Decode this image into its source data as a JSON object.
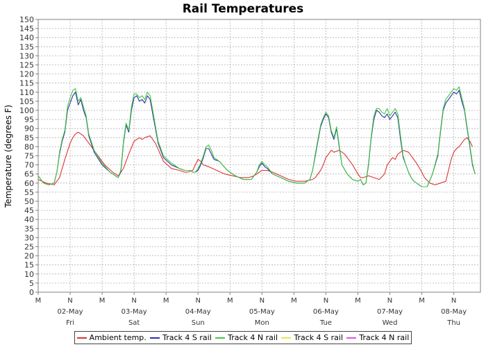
{
  "chart_data": {
    "type": "line",
    "title": "Rail Temperatures",
    "xlabel": "",
    "ylabel": "Temperature (degrees F)",
    "ylim": [
      0,
      150
    ],
    "yticks": [
      0,
      5,
      10,
      15,
      20,
      25,
      30,
      35,
      40,
      45,
      50,
      55,
      60,
      65,
      70,
      75,
      80,
      85,
      90,
      95,
      100,
      105,
      110,
      115,
      120,
      125,
      130,
      135,
      140,
      145,
      150
    ],
    "xlim": [
      0,
      166
    ],
    "x_unit": "hours from 01-May 00:00",
    "grid": true,
    "legend_position": "bottom",
    "time_ticks": [
      {
        "h": 0,
        "label": "M"
      },
      {
        "h": 12,
        "label": "N"
      },
      {
        "h": 24,
        "label": "M"
      },
      {
        "h": 36,
        "label": "N"
      },
      {
        "h": 48,
        "label": "M"
      },
      {
        "h": 60,
        "label": "N"
      },
      {
        "h": 72,
        "label": "M"
      },
      {
        "h": 84,
        "label": "N"
      },
      {
        "h": 96,
        "label": "M"
      },
      {
        "h": 108,
        "label": "N"
      },
      {
        "h": 120,
        "label": "M"
      },
      {
        "h": 132,
        "label": "N"
      },
      {
        "h": 144,
        "label": "M"
      },
      {
        "h": 156,
        "label": "N"
      }
    ],
    "day_labels": [
      {
        "h": 12,
        "date": "02-May",
        "day": "Fri"
      },
      {
        "h": 36,
        "date": "03-May",
        "day": "Sat"
      },
      {
        "h": 60,
        "date": "04-May",
        "day": "Sun"
      },
      {
        "h": 84,
        "date": "05-May",
        "day": "Mon"
      },
      {
        "h": 108,
        "date": "06-May",
        "day": "Tue"
      },
      {
        "h": 132,
        "date": "07-May",
        "day": "Wed"
      },
      {
        "h": 156,
        "date": "08-May",
        "day": "Thu"
      }
    ],
    "series": [
      {
        "name": "Ambient temp.",
        "color": "#dd3333",
        "x": [
          0,
          3,
          6,
          8,
          10,
          12,
          13,
          14,
          15,
          17,
          19,
          22,
          25,
          28,
          30,
          32,
          34,
          36,
          38,
          39,
          40,
          42,
          44,
          47,
          50,
          53,
          55,
          56,
          58,
          59,
          60,
          61,
          62,
          64,
          67,
          70,
          73,
          76,
          79,
          81,
          82,
          83,
          84,
          85,
          86,
          88,
          91,
          94,
          97,
          100,
          103,
          104,
          106,
          107,
          108,
          109,
          110,
          111,
          113,
          115,
          118,
          120,
          121,
          122,
          124,
          126,
          128,
          130,
          131,
          132,
          133,
          134,
          135,
          137,
          139,
          142,
          144,
          145,
          147,
          149,
          151,
          153,
          154,
          155,
          156,
          157,
          158,
          160,
          161,
          162,
          163
        ],
        "y": [
          62,
          60,
          59,
          63,
          73,
          82,
          85,
          87,
          88,
          86,
          82,
          76,
          70,
          66,
          64,
          68,
          76,
          83,
          85,
          84,
          85,
          86,
          82,
          72,
          68,
          67,
          66,
          66,
          67,
          70,
          73,
          72,
          70,
          69,
          67,
          65,
          64,
          63,
          63,
          64,
          65,
          66,
          67,
          67,
          67,
          66,
          64,
          62,
          61,
          61,
          62,
          63,
          67,
          70,
          74,
          76,
          78,
          77,
          78,
          76,
          70,
          65,
          63,
          63,
          64,
          63,
          62,
          65,
          70,
          72,
          74,
          73,
          76,
          78,
          77,
          71,
          66,
          63,
          60,
          59,
          60,
          61,
          67,
          73,
          77,
          79,
          80,
          84,
          85,
          83,
          80
        ]
      },
      {
        "name": "Track 4 S rail",
        "color": "#3030a8",
        "x": [
          0,
          2,
          4,
          6,
          7,
          8,
          9,
          10,
          11,
          12,
          13,
          14,
          15,
          16,
          17,
          18,
          19,
          21,
          24,
          27,
          30,
          31,
          32,
          33,
          34,
          35,
          36,
          37,
          38,
          39,
          40,
          41,
          42,
          43,
          45,
          47,
          50,
          53,
          55,
          57,
          58,
          59,
          60,
          61,
          62,
          63,
          64,
          65,
          66,
          68,
          71,
          74,
          77,
          79,
          80,
          81,
          82,
          83,
          84,
          85,
          86,
          88,
          91,
          94,
          97,
          100,
          102,
          103,
          104,
          105,
          106,
          107,
          108,
          109,
          110,
          111,
          112,
          113,
          114,
          116,
          118,
          120,
          121,
          122,
          123,
          124,
          125,
          126,
          127,
          128,
          129,
          130,
          131,
          132,
          133,
          134,
          135,
          136,
          137,
          138,
          139,
          140,
          141,
          142,
          144,
          146,
          148,
          150,
          151,
          152,
          153,
          154,
          155,
          156,
          157,
          158,
          159,
          160,
          161,
          162,
          163,
          164
        ],
        "y": [
          64,
          60,
          59,
          60,
          66,
          76,
          83,
          88,
          100,
          104,
          108,
          110,
          103,
          106,
          100,
          96,
          86,
          77,
          70,
          66,
          63,
          66,
          82,
          92,
          88,
          100,
          107,
          108,
          105,
          106,
          104,
          108,
          106,
          98,
          82,
          74,
          70,
          68,
          67,
          67,
          66,
          66,
          67,
          70,
          74,
          79,
          79,
          76,
          73,
          72,
          67,
          64,
          62,
          62,
          62,
          64,
          66,
          69,
          71,
          69,
          68,
          65,
          63,
          61,
          60,
          60,
          62,
          67,
          75,
          83,
          91,
          95,
          98,
          96,
          88,
          84,
          90,
          80,
          70,
          65,
          62,
          61,
          62,
          59,
          60,
          70,
          85,
          95,
          100,
          99,
          97,
          96,
          98,
          95,
          97,
          99,
          96,
          84,
          74,
          70,
          66,
          63,
          61,
          60,
          58,
          58,
          65,
          75,
          88,
          100,
          104,
          106,
          108,
          110,
          109,
          111,
          105,
          100,
          90,
          80,
          70,
          65
        ]
      },
      {
        "name": "Track 4 N rail",
        "color": "#40c840",
        "x": [
          0,
          2,
          4,
          6,
          7,
          8,
          9,
          10,
          11,
          12,
          13,
          14,
          15,
          16,
          17,
          18,
          19,
          21,
          24,
          27,
          30,
          31,
          32,
          33,
          34,
          35,
          36,
          37,
          38,
          39,
          40,
          41,
          42,
          43,
          45,
          47,
          50,
          53,
          55,
          57,
          58,
          59,
          60,
          61,
          62,
          63,
          64,
          65,
          66,
          68,
          71,
          74,
          77,
          79,
          80,
          81,
          82,
          83,
          84,
          85,
          86,
          88,
          91,
          94,
          97,
          100,
          102,
          103,
          104,
          105,
          106,
          107,
          108,
          109,
          110,
          111,
          112,
          113,
          114,
          116,
          118,
          120,
          121,
          122,
          123,
          124,
          125,
          126,
          127,
          128,
          129,
          130,
          131,
          132,
          133,
          134,
          135,
          136,
          137,
          138,
          139,
          140,
          141,
          142,
          144,
          146,
          148,
          150,
          151,
          152,
          153,
          154,
          155,
          156,
          157,
          158,
          159,
          160,
          161,
          162,
          163,
          164
        ],
        "y": [
          64,
          60,
          59,
          60,
          66,
          77,
          84,
          89,
          102,
          107,
          111,
          112,
          105,
          107,
          102,
          97,
          87,
          78,
          71,
          66,
          63,
          67,
          83,
          93,
          89,
          102,
          109,
          109,
          107,
          108,
          106,
          110,
          108,
          100,
          83,
          75,
          71,
          68,
          67,
          67,
          66,
          66,
          68,
          71,
          75,
          80,
          81,
          78,
          74,
          72,
          67,
          64,
          62,
          62,
          62,
          64,
          66,
          70,
          72,
          70,
          69,
          65,
          63,
          61,
          60,
          60,
          62,
          67,
          76,
          84,
          92,
          96,
          99,
          97,
          89,
          85,
          91,
          81,
          70,
          65,
          62,
          61,
          62,
          59,
          60,
          71,
          86,
          97,
          101,
          101,
          99,
          98,
          101,
          97,
          99,
          101,
          98,
          86,
          75,
          70,
          66,
          63,
          61,
          60,
          58,
          58,
          65,
          76,
          89,
          101,
          106,
          108,
          110,
          112,
          111,
          113,
          107,
          101,
          91,
          81,
          71,
          65
        ]
      }
    ],
    "legend_only": [
      {
        "name": "Track 4 S rail",
        "color": "#e8e84a"
      },
      {
        "name": "Track 4 N rail",
        "color": "#e050e0"
      }
    ]
  }
}
